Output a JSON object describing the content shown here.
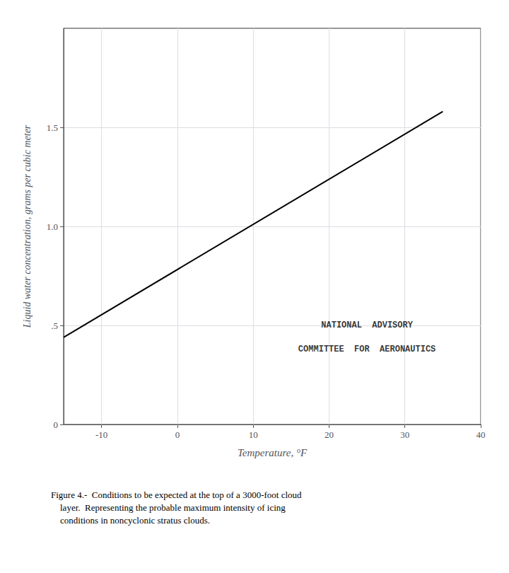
{
  "chart_data": {
    "type": "line",
    "x": [
      -15,
      35
    ],
    "values": [
      0.44,
      1.58
    ],
    "color": "#000000",
    "xlabel": "Temperature, °F",
    "ylabel": "Liquid water concentration, grams per cubic meter",
    "xlim": [
      -15,
      40
    ],
    "ylim": [
      0,
      2.0
    ],
    "xticks": [
      -10,
      0,
      10,
      20,
      30,
      40
    ],
    "yticks": [
      0,
      {
        "value": 0.5,
        "label": ".5"
      },
      {
        "value": 1.0,
        "label": "1.0"
      },
      1.5
    ],
    "grid": true,
    "annotations": [
      {
        "text": "NATIONAL  ADVISORY",
        "x": 25,
        "y": 0.5
      },
      {
        "text": "COMMITTEE  FOR  AERONAUTICS",
        "x": 25,
        "y": 0.38
      }
    ],
    "caption": "Figure 4.-  Conditions to be expected at the top of a 3000-foot cloud\n    layer.  Representing the probable maximum intensity of icing\n    conditions in noncyclonic stratus clouds."
  }
}
